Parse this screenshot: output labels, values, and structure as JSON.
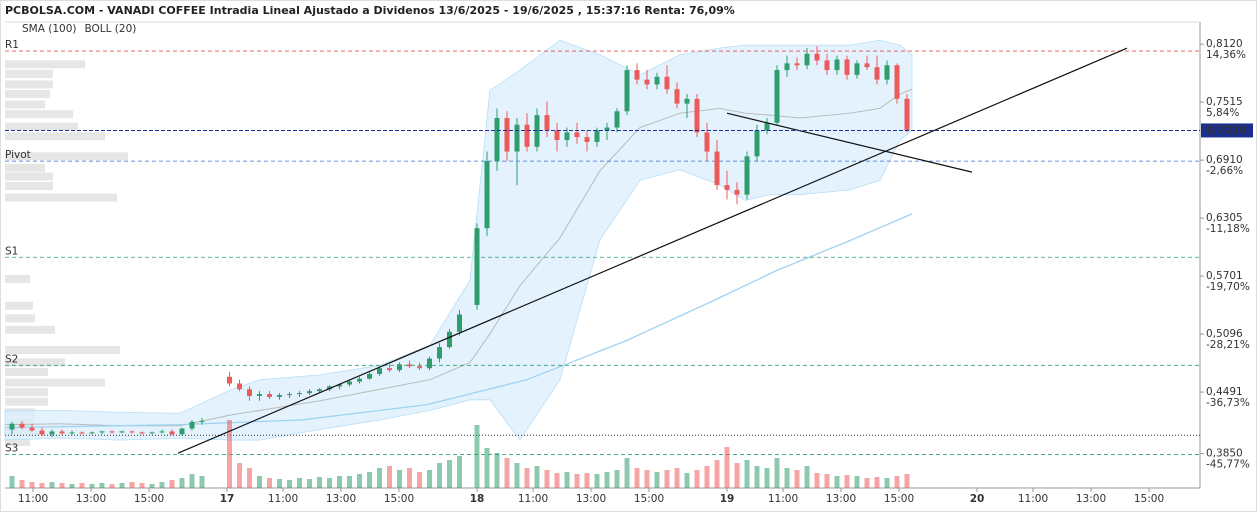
{
  "chart_data": {
    "type": "candlestick",
    "title": "PCBOLSA.COM - VANADI COFFEE Intradia Lineal Ajustado a Dividenos 13/6/2025 - 19/6/2025 , 15:37:16 Renta: 76,09%",
    "legend": [
      {
        "name": "SMA (100)",
        "color": "#9fd3f0"
      },
      {
        "name": "BOLL (20)",
        "color": "#bbbbbb"
      }
    ],
    "legend_position": "top-left",
    "xlim": [
      16.112,
      20.892
    ],
    "ylim": [
      0.349,
      0.832
    ],
    "xticks": [
      {
        "value": 16.224,
        "label": "11:00"
      },
      {
        "value": 16.456,
        "label": "13:00"
      },
      {
        "value": 16.688,
        "label": "15:00"
      },
      17,
      {
        "value": 17.224,
        "label": "11:00"
      },
      {
        "value": 17.456,
        "label": "13:00"
      },
      {
        "value": 17.688,
        "label": "15:00"
      },
      18,
      {
        "value": 18.224,
        "label": "11:00"
      },
      {
        "value": 18.456,
        "label": "13:00"
      },
      {
        "value": 18.688,
        "label": "15:00"
      },
      19,
      {
        "value": 19.224,
        "label": "11:00"
      },
      {
        "value": 19.456,
        "label": "13:00"
      },
      {
        "value": 19.688,
        "label": "15:00"
      },
      20,
      {
        "value": 20.224,
        "label": "11:00"
      },
      {
        "value": 20.456,
        "label": "13:00"
      },
      {
        "value": 20.688,
        "label": "15:00"
      }
    ],
    "yticks": [
      {
        "value": 0.812,
        "label": "0,8120"
      },
      {
        "value": 0.7515,
        "label": "0,7515"
      },
      {
        "value": 0.691,
        "label": "0,6910"
      },
      {
        "value": 0.6305,
        "label": "0,6305"
      },
      {
        "value": 0.5701,
        "label": "0,5701"
      },
      {
        "value": 0.5096,
        "label": "0,5096"
      },
      {
        "value": 0.4491,
        "label": "0,4491"
      },
      {
        "value": 0.385,
        "label": "0,3850"
      }
    ],
    "ytick_percent_labels": [
      "14,36%",
      "5,84%",
      "-2,66%",
      "-11,18%",
      "-19,70%",
      "-28,21%",
      "-36,73%",
      "-45,77%"
    ],
    "up_color": "#2e9e6e",
    "down_color": "#ec5b5b",
    "current_price": {
      "value": 0.722,
      "label": "0,7220",
      "color": "#1c2f8f"
    },
    "levels": [
      {
        "name": "R1",
        "value": 0.8048,
        "color": "#e05050"
      },
      {
        "name": "Pivot",
        "value": 0.69,
        "color": "#3a6ad0"
      },
      {
        "name": "S1",
        "value": 0.5897,
        "color": "#2e9e6e"
      },
      {
        "name": "S2",
        "value": 0.477,
        "color": "#2e9e6e"
      },
      {
        "name": "S3",
        "value": 0.384,
        "color": "#2e9e6e"
      }
    ],
    "reference_line": 0.404,
    "x": [
      16.14,
      16.18,
      16.22,
      16.26,
      16.3,
      16.34,
      16.38,
      16.42,
      16.46,
      16.5,
      16.54,
      16.58,
      16.62,
      16.66,
      16.7,
      16.74,
      16.78,
      16.82,
      16.86,
      16.9,
      17.01,
      17.05,
      17.09,
      17.13,
      17.17,
      17.21,
      17.25,
      17.29,
      17.33,
      17.37,
      17.41,
      17.45,
      17.49,
      17.53,
      17.57,
      17.61,
      17.65,
      17.69,
      17.73,
      17.77,
      17.81,
      17.85,
      17.89,
      17.93,
      18.0,
      18.04,
      18.08,
      18.12,
      18.16,
      18.2,
      18.24,
      18.28,
      18.32,
      18.36,
      18.4,
      18.44,
      18.48,
      18.52,
      18.56,
      18.6,
      18.64,
      18.68,
      18.72,
      18.76,
      18.8,
      18.84,
      18.88,
      18.92,
      18.96,
      19.0,
      19.04,
      19.08,
      19.12,
      19.16,
      19.2,
      19.24,
      19.28,
      19.32,
      19.36,
      19.4,
      19.44,
      19.48,
      19.52,
      19.56,
      19.6,
      19.64,
      19.68,
      19.72
    ],
    "open": [
      0.41,
      0.416,
      0.412,
      0.409,
      0.405,
      0.408,
      0.406,
      0.407,
      0.406,
      0.407,
      0.408,
      0.407,
      0.408,
      0.407,
      0.406,
      0.407,
      0.408,
      0.405,
      0.411,
      0.418,
      0.465,
      0.458,
      0.452,
      0.445,
      0.447,
      0.444,
      0.446,
      0.447,
      0.448,
      0.45,
      0.452,
      0.455,
      0.457,
      0.46,
      0.463,
      0.468,
      0.474,
      0.472,
      0.478,
      0.476,
      0.474,
      0.484,
      0.496,
      0.512,
      0.54,
      0.62,
      0.69,
      0.735,
      0.7,
      0.728,
      0.705,
      0.738,
      0.722,
      0.712,
      0.72,
      0.715,
      0.71,
      0.722,
      0.725,
      0.742,
      0.785,
      0.775,
      0.77,
      0.778,
      0.765,
      0.75,
      0.755,
      0.72,
      0.7,
      0.665,
      0.66,
      0.655,
      0.695,
      0.722,
      0.73,
      0.785,
      0.792,
      0.79,
      0.802,
      0.795,
      0.785,
      0.796,
      0.78,
      0.792,
      0.788,
      0.775,
      0.79,
      0.755
    ],
    "high": [
      0.418,
      0.419,
      0.416,
      0.412,
      0.41,
      0.41,
      0.409,
      0.408,
      0.408,
      0.409,
      0.409,
      0.409,
      0.409,
      0.408,
      0.408,
      0.41,
      0.41,
      0.412,
      0.42,
      0.422,
      0.47,
      0.462,
      0.455,
      0.45,
      0.45,
      0.448,
      0.449,
      0.45,
      0.452,
      0.453,
      0.456,
      0.458,
      0.462,
      0.465,
      0.47,
      0.476,
      0.478,
      0.48,
      0.482,
      0.48,
      0.486,
      0.5,
      0.515,
      0.535,
      0.625,
      0.7,
      0.745,
      0.742,
      0.735,
      0.74,
      0.745,
      0.752,
      0.73,
      0.725,
      0.73,
      0.722,
      0.725,
      0.73,
      0.745,
      0.79,
      0.792,
      0.785,
      0.782,
      0.79,
      0.772,
      0.76,
      0.76,
      0.73,
      0.712,
      0.68,
      0.668,
      0.7,
      0.728,
      0.735,
      0.79,
      0.8,
      0.798,
      0.808,
      0.81,
      0.802,
      0.8,
      0.8,
      0.795,
      0.8,
      0.8,
      0.795,
      0.792,
      0.76
    ],
    "low": [
      0.405,
      0.41,
      0.408,
      0.403,
      0.402,
      0.404,
      0.404,
      0.405,
      0.405,
      0.405,
      0.406,
      0.406,
      0.406,
      0.405,
      0.405,
      0.406,
      0.404,
      0.404,
      0.409,
      0.415,
      0.455,
      0.45,
      0.44,
      0.44,
      0.442,
      0.441,
      0.443,
      0.444,
      0.446,
      0.448,
      0.45,
      0.452,
      0.455,
      0.458,
      0.462,
      0.466,
      0.47,
      0.47,
      0.474,
      0.472,
      0.472,
      0.48,
      0.494,
      0.508,
      0.535,
      0.612,
      0.68,
      0.69,
      0.665,
      0.7,
      0.7,
      0.715,
      0.7,
      0.705,
      0.708,
      0.7,
      0.705,
      0.712,
      0.72,
      0.738,
      0.77,
      0.765,
      0.765,
      0.76,
      0.745,
      0.735,
      0.715,
      0.69,
      0.66,
      0.65,
      0.645,
      0.65,
      0.69,
      0.718,
      0.728,
      0.778,
      0.785,
      0.786,
      0.79,
      0.78,
      0.78,
      0.775,
      0.776,
      0.785,
      0.77,
      0.77,
      0.75,
      0.72
    ],
    "close": [
      0.416,
      0.412,
      0.409,
      0.405,
      0.408,
      0.406,
      0.407,
      0.406,
      0.407,
      0.408,
      0.407,
      0.408,
      0.407,
      0.406,
      0.407,
      0.408,
      0.405,
      0.411,
      0.418,
      0.419,
      0.458,
      0.452,
      0.445,
      0.447,
      0.444,
      0.446,
      0.447,
      0.448,
      0.45,
      0.452,
      0.455,
      0.457,
      0.46,
      0.463,
      0.468,
      0.474,
      0.472,
      0.478,
      0.476,
      0.474,
      0.484,
      0.496,
      0.512,
      0.53,
      0.62,
      0.69,
      0.735,
      0.7,
      0.728,
      0.705,
      0.738,
      0.722,
      0.712,
      0.72,
      0.715,
      0.71,
      0.722,
      0.725,
      0.742,
      0.785,
      0.775,
      0.77,
      0.778,
      0.765,
      0.75,
      0.755,
      0.72,
      0.7,
      0.665,
      0.66,
      0.655,
      0.695,
      0.722,
      0.73,
      0.785,
      0.792,
      0.79,
      0.802,
      0.795,
      0.785,
      0.796,
      0.78,
      0.792,
      0.788,
      0.775,
      0.79,
      0.755,
      0.722
    ],
    "volume": [
      12,
      8,
      6,
      5,
      6,
      5,
      4,
      5,
      4,
      5,
      4,
      5,
      6,
      5,
      4,
      6,
      8,
      10,
      14,
      12,
      68,
      25,
      20,
      12,
      10,
      9,
      8,
      10,
      9,
      11,
      10,
      12,
      12,
      14,
      16,
      20,
      22,
      18,
      20,
      16,
      18,
      25,
      28,
      32,
      63,
      40,
      35,
      30,
      25,
      20,
      22,
      18,
      15,
      16,
      14,
      15,
      14,
      16,
      18,
      30,
      20,
      18,
      16,
      18,
      20,
      15,
      18,
      22,
      28,
      41,
      25,
      28,
      22,
      20,
      30,
      20,
      18,
      22,
      15,
      14,
      12,
      13,
      12,
      10,
      11,
      10,
      12,
      14
    ],
    "bollinger": {
      "x": [
        16.112,
        16.332,
        16.572,
        16.812,
        17.012,
        17.132,
        17.372,
        17.612,
        17.812,
        17.972,
        18.052,
        18.172,
        18.332,
        18.492,
        18.652,
        18.812,
        18.972,
        19.072,
        19.172,
        19.292,
        19.492,
        19.612,
        19.692,
        19.74
      ],
      "upper": [
        0.43,
        0.43,
        0.428,
        0.427,
        0.451,
        0.462,
        0.467,
        0.477,
        0.498,
        0.566,
        0.764,
        0.785,
        0.816,
        0.801,
        0.78,
        0.801,
        0.808,
        0.811,
        0.811,
        0.811,
        0.811,
        0.816,
        0.811,
        0.801
      ],
      "middle": [
        0.415,
        0.416,
        0.414,
        0.414,
        0.425,
        0.43,
        0.44,
        0.452,
        0.462,
        0.48,
        0.51,
        0.56,
        0.61,
        0.68,
        0.725,
        0.74,
        0.745,
        0.74,
        0.738,
        0.735,
        0.74,
        0.745,
        0.76,
        0.765
      ],
      "lower": [
        0.399,
        0.401,
        0.399,
        0.401,
        0.399,
        0.399,
        0.41,
        0.42,
        0.43,
        0.441,
        0.441,
        0.399,
        0.462,
        0.608,
        0.67,
        0.681,
        0.665,
        0.649,
        0.655,
        0.655,
        0.66,
        0.67,
        0.712,
        0.722
      ]
    },
    "sma": {
      "x": [
        16.112,
        16.8,
        17.3,
        17.8,
        18.2,
        18.6,
        18.95,
        19.2,
        19.5,
        19.74
      ],
      "values": [
        0.412,
        0.415,
        0.42,
        0.436,
        0.462,
        0.503,
        0.545,
        0.576,
        0.608,
        0.635
      ]
    },
    "trendlines": [
      {
        "x": [
          16.804,
          20.6
        ],
        "y": [
          0.3853,
          0.8078
        ]
      },
      {
        "x": [
          19.0,
          19.98
        ],
        "y": [
          0.74,
          0.6785
        ]
      }
    ],
    "volume_profile": {
      "price": [
        0.791,
        0.781,
        0.77,
        0.76,
        0.749,
        0.739,
        0.726,
        0.716,
        0.695,
        0.683,
        0.674,
        0.664,
        0.652,
        0.567,
        0.539,
        0.526,
        0.514,
        0.493,
        0.48,
        0.47,
        0.459,
        0.449,
        0.439,
        0.428,
        0.418,
        0.407,
        0.397
      ],
      "size": [
        80,
        48,
        48,
        45,
        40,
        68,
        73,
        100,
        123,
        40,
        48,
        48,
        112,
        25,
        28,
        30,
        50,
        115,
        60,
        43,
        100,
        43,
        43,
        30,
        30,
        40,
        25
      ]
    }
  }
}
